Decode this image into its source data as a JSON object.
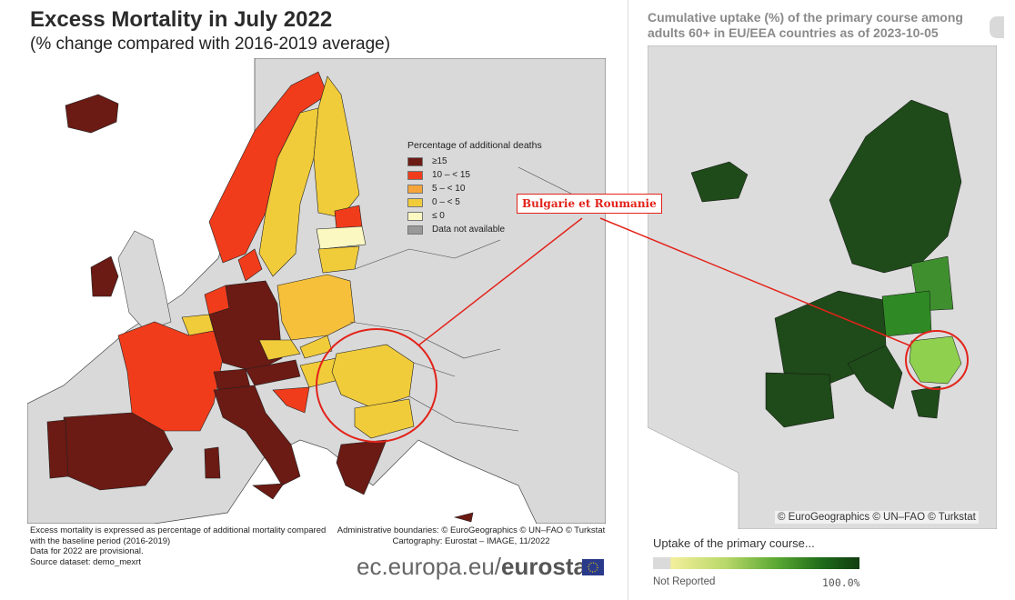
{
  "left": {
    "title": "Excess Mortality in July 2022",
    "subtitle": "(% change compared with 2016-2019 average)",
    "legend": {
      "title": "Percentage of additional deaths",
      "items": [
        {
          "label": "≥15",
          "color": "#6b1a14"
        },
        {
          "label": "10 – < 15",
          "color": "#f13c1b"
        },
        {
          "label": "5 – < 10",
          "color": "#f6a53a"
        },
        {
          "label": "0 – < 5",
          "color": "#f1cc3a"
        },
        {
          "label": "≤ 0",
          "color": "#fbf8c2"
        },
        {
          "label": "Data not available",
          "color": "#999999"
        }
      ]
    },
    "footnote": "Excess mortality is expressed as percentage of additional mortality compared\nwith the baseline period (2016-2019)\nData for 2022 are provisional.\nSource dataset: demo_mexrt",
    "credits": "Administrative boundaries: © EuroGeographics © UN–FAO © Turkstat\nCartography: Eurostat – IMAGE, 11/2022",
    "brand_plain": "ec.europa.eu/",
    "brand_bold": "eurostat"
  },
  "callout": {
    "label": "Bulgarie et Roumanie",
    "color": "#e2231a"
  },
  "right": {
    "title": "Cumulative uptake (%) of the primary course among adults 60+ in EU/EEA countries as of 2023-10-05",
    "attribution": "© EuroGeographics © UN–FAO © Turkstat",
    "legend_label": "Uptake of the primary course...",
    "legend_min": "Not Reported",
    "legend_max": "100.0%"
  },
  "colors": {
    "sea": "#ffffff",
    "land_nodata": "#d9d9d9",
    "dark_green": "#1f4a1a",
    "mid_green": "#2f7a25",
    "light_green": "#8fd14f"
  }
}
